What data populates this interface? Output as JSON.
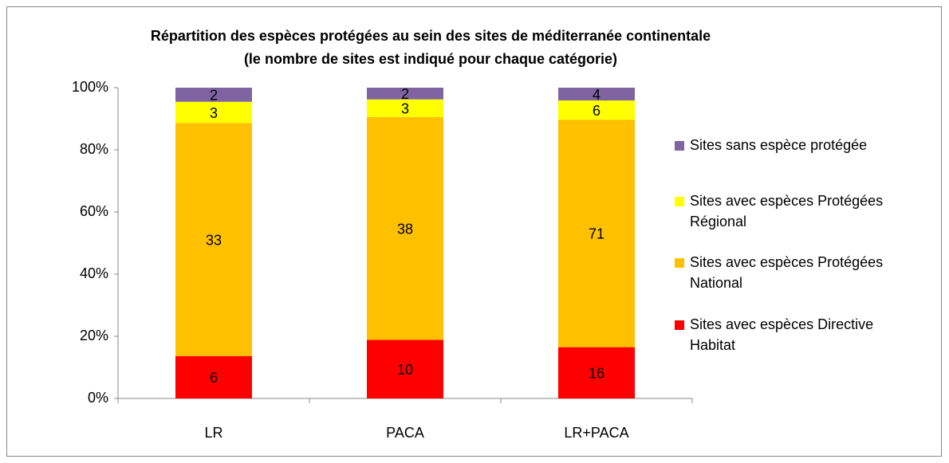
{
  "chart_data": {
    "type": "bar",
    "stack": "percent",
    "title": "Répartition des espèces protégées au sein des sites de méditerranée continentale",
    "subtitle": "(le nombre de sites est indiqué pour chaque catégorie)",
    "categories": [
      "LR",
      "PACA",
      "LR+PACA"
    ],
    "series": [
      {
        "name": "Sites avec espèces Directive Habitat",
        "color": "#ff0000",
        "values": [
          6,
          10,
          16
        ]
      },
      {
        "name": "Sites avec espèces Protégées National",
        "color": "#ffc000",
        "values": [
          33,
          38,
          71
        ]
      },
      {
        "name": "Sites avec espèces Protégées Régional",
        "color": "#ffff00",
        "values": [
          3,
          3,
          6
        ]
      },
      {
        "name": "Sites sans espèce protégée",
        "color": "#8064a2",
        "values": [
          2,
          2,
          4
        ]
      }
    ],
    "ylim": [
      0,
      100
    ],
    "yticks": [
      {
        "value": 0,
        "label": "0%"
      },
      {
        "value": 20,
        "label": "20%"
      },
      {
        "value": 40,
        "label": "40%"
      },
      {
        "value": 60,
        "label": "60%"
      },
      {
        "value": 80,
        "label": "80%"
      },
      {
        "value": 100,
        "label": "100%"
      }
    ],
    "legend": "right"
  }
}
